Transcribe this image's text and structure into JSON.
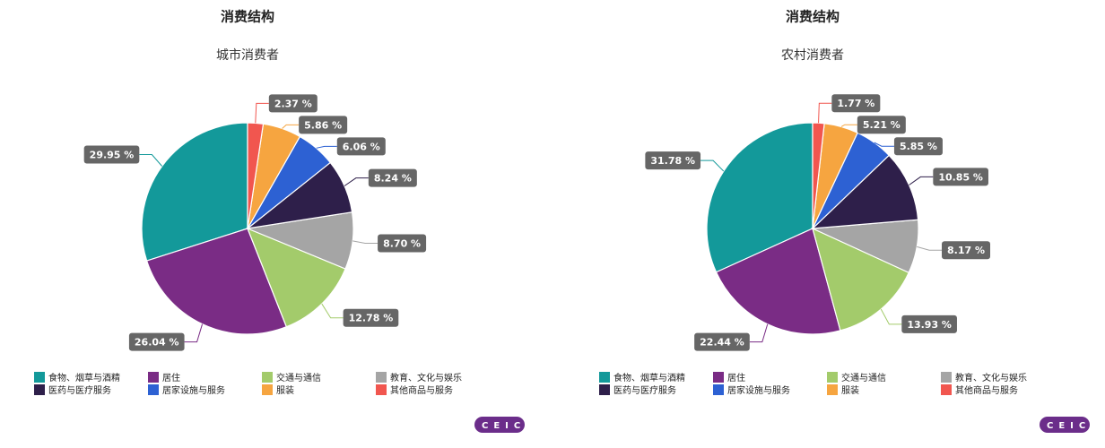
{
  "chart_data": [
    {
      "type": "pie",
      "title": "消费结构",
      "subtitle": "城市消费者",
      "categories": [
        "食物、烟草与酒精",
        "居住",
        "交通与通信",
        "教育、文化与娱乐",
        "医药与医疗服务",
        "居家设施与服务",
        "服装",
        "其他商品与服务"
      ],
      "values": [
        29.95,
        26.04,
        12.78,
        8.7,
        8.24,
        6.06,
        5.86,
        2.37
      ],
      "value_labels": [
        "29.95 %",
        "26.04 %",
        "12.78 %",
        "8.70 %",
        "8.24 %",
        "6.06 %",
        "5.86 %",
        "2.37 %"
      ],
      "colors": [
        "#13999a",
        "#7a2c85",
        "#a3cb6b",
        "#a5a5a5",
        "#2e1f4a",
        "#2d61d3",
        "#f6a540",
        "#f1564f"
      ],
      "logo": "CEIC"
    },
    {
      "type": "pie",
      "title": "消费结构",
      "subtitle": "农村消费者",
      "categories": [
        "食物、烟草与酒精",
        "居住",
        "交通与通信",
        "教育、文化与娱乐",
        "医药与医疗服务",
        "居家设施与服务",
        "服装",
        "其他商品与服务"
      ],
      "values": [
        31.78,
        22.44,
        13.93,
        8.17,
        10.85,
        5.85,
        5.21,
        1.77
      ],
      "value_labels": [
        "31.78 %",
        "22.44 %",
        "13.93 %",
        "8.17 %",
        "10.85 %",
        "5.85 %",
        "5.21 %",
        "1.77 %"
      ],
      "colors": [
        "#13999a",
        "#7a2c85",
        "#a3cb6b",
        "#a5a5a5",
        "#2e1f4a",
        "#2d61d3",
        "#f6a540",
        "#f1564f"
      ],
      "logo": "CEIC"
    }
  ]
}
